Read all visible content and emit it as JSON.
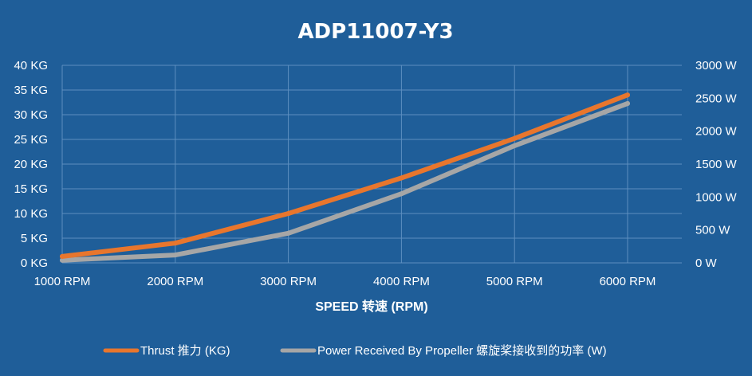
{
  "chart_data": {
    "type": "line",
    "title": "ADP11007-Y3",
    "xlabel": "SPEED 转速 (RPM)",
    "categories": [
      "1000 RPM",
      "2000 RPM",
      "3000 RPM",
      "4000 RPM",
      "5000 RPM",
      "6000 RPM"
    ],
    "y_left": {
      "ticks": [
        "0 KG",
        "5 KG",
        "10 KG",
        "15 KG",
        "20 KG",
        "25 KG",
        "30 KG",
        "35 KG",
        "40 KG"
      ],
      "ylim": [
        0,
        40
      ]
    },
    "y_right": {
      "ticks": [
        "0 W",
        "500 W",
        "1000 W",
        "1500 W",
        "2000 W",
        "2500 W",
        "3000 W"
      ],
      "ylim": [
        0,
        3000
      ]
    },
    "grid": true,
    "legend_position": "bottom",
    "series": [
      {
        "name": "Thrust 推力 (KG)",
        "axis": "left",
        "color": "#e8762d",
        "values": [
          1.3,
          4.0,
          10.0,
          17.2,
          25.2,
          34.0
        ]
      },
      {
        "name": "Power Received By Propeller 螺旋桨接收到的功率 (W)",
        "axis": "right",
        "color": "#a6a6a6",
        "values": [
          40,
          120,
          450,
          1050,
          1780,
          2420
        ]
      }
    ]
  }
}
